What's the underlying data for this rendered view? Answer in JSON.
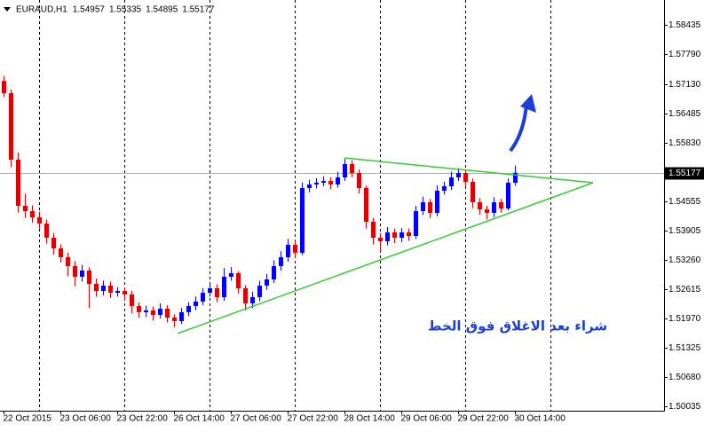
{
  "chart_data": {
    "type": "candlestick",
    "series": [
      {
        "name": "EURAUD,H1",
        "open": [
          1.572,
          1.56931,
          1.55466,
          1.5445,
          1.54333,
          1.54196,
          1.54059,
          1.53747,
          1.53512,
          1.53317,
          1.53121,
          1.52887,
          1.53024,
          1.52731,
          1.52574,
          1.52692,
          1.52535,
          1.52574,
          1.52496,
          1.52242,
          1.52106,
          1.52145,
          1.52047,
          1.52184,
          1.51988,
          1.5191,
          1.52106,
          1.52242,
          1.5234,
          1.52535,
          1.52633,
          1.52438,
          1.52887,
          1.52965,
          1.52633,
          1.52301,
          1.52438,
          1.52692,
          1.52828,
          1.53121,
          1.53317,
          1.5359,
          1.53415,
          1.54841,
          1.54919,
          1.54958,
          1.54997,
          1.54919,
          1.55075,
          1.55368,
          1.55173,
          1.54841,
          1.54098,
          1.53747,
          1.53668,
          1.53864,
          1.53747,
          1.53864,
          1.53786,
          1.54333,
          1.54528,
          1.54294,
          1.54782,
          1.5488,
          1.55075,
          1.55173,
          1.54977,
          1.54528,
          1.54372,
          1.54294,
          1.54528,
          1.54391,
          1.54957
        ],
        "high": [
          1.5731,
          1.5701,
          1.5562,
          1.5472,
          1.5446,
          1.5432,
          1.5415,
          1.5385,
          1.536,
          1.5342,
          1.5323,
          1.5315,
          1.531,
          1.5285,
          1.528,
          1.5278,
          1.5266,
          1.5265,
          1.5258,
          1.5232,
          1.5225,
          1.5223,
          1.523,
          1.5226,
          1.5206,
          1.522,
          1.5233,
          1.5245,
          1.5264,
          1.5276,
          1.5272,
          1.5308,
          1.531,
          1.5301,
          1.527,
          1.5256,
          1.528,
          1.5295,
          1.5325,
          1.5345,
          1.5372,
          1.5368,
          1.5496,
          1.5502,
          1.5506,
          1.551,
          1.5508,
          1.552,
          1.5548,
          1.5545,
          1.5525,
          1.549,
          1.5418,
          1.5385,
          1.5398,
          1.5395,
          1.5396,
          1.5395,
          1.5445,
          1.5465,
          1.546,
          1.549,
          1.5498,
          1.552,
          1.5528,
          1.5522,
          1.5505,
          1.5462,
          1.5445,
          1.5464,
          1.546,
          1.5505,
          1.55335
        ],
        "low": [
          1.5685,
          1.553,
          1.543,
          1.5418,
          1.5408,
          1.5395,
          1.5362,
          1.5338,
          1.532,
          1.529,
          1.5268,
          1.5278,
          1.522,
          1.5245,
          1.5248,
          1.5242,
          1.5245,
          1.5238,
          1.5208,
          1.5198,
          1.52,
          1.5193,
          1.5197,
          1.5188,
          1.5178,
          1.5185,
          1.5202,
          1.5215,
          1.5226,
          1.5245,
          1.5233,
          1.5236,
          1.528,
          1.5252,
          1.5215,
          1.522,
          1.5235,
          1.526,
          1.5275,
          1.5302,
          1.5322,
          1.533,
          1.5336,
          1.5475,
          1.5483,
          1.5488,
          1.5482,
          1.5485,
          1.55,
          1.5508,
          1.5472,
          1.5395,
          1.536,
          1.5345,
          1.5358,
          1.5363,
          1.5365,
          1.5368,
          1.5372,
          1.5425,
          1.5418,
          1.5422,
          1.547,
          1.548,
          1.55,
          1.5488,
          1.544,
          1.5425,
          1.5415,
          1.542,
          1.543,
          1.5435,
          1.54895
        ],
        "close": [
          1.56931,
          1.55466,
          1.5445,
          1.54333,
          1.54196,
          1.54059,
          1.53747,
          1.53512,
          1.53317,
          1.53121,
          1.52887,
          1.53024,
          1.52731,
          1.52574,
          1.52692,
          1.52535,
          1.52574,
          1.52496,
          1.52242,
          1.52106,
          1.52145,
          1.52047,
          1.52184,
          1.51988,
          1.5191,
          1.52106,
          1.52242,
          1.5234,
          1.52535,
          1.52633,
          1.52438,
          1.52887,
          1.52965,
          1.52633,
          1.52301,
          1.52438,
          1.52692,
          1.52828,
          1.53121,
          1.53317,
          1.5359,
          1.53415,
          1.54841,
          1.54919,
          1.54958,
          1.54997,
          1.54919,
          1.55075,
          1.55368,
          1.55173,
          1.54841,
          1.54098,
          1.53747,
          1.53668,
          1.53864,
          1.53747,
          1.53864,
          1.53786,
          1.54333,
          1.54528,
          1.54294,
          1.54782,
          1.5488,
          1.55075,
          1.55173,
          1.54977,
          1.54528,
          1.54372,
          1.54294,
          1.54528,
          1.54391,
          1.54957,
          1.55177
        ]
      }
    ],
    "up_color": "#0000ff",
    "down_color": "#e00000",
    "xlim": [
      -0.5,
      93
    ],
    "xticks": [
      {
        "value": 0,
        "label": "22 Oct 2015"
      },
      {
        "value": 8,
        "label": "23 Oct 06:00"
      },
      {
        "value": 16,
        "label": "23 Oct 22:00"
      },
      {
        "value": 24,
        "label": "26 Oct 14:00"
      },
      {
        "value": 32,
        "label": "27 Oct 06:00"
      },
      {
        "value": 40,
        "label": "27 Oct 22:00"
      },
      {
        "value": 48,
        "label": "28 Oct 14:00"
      },
      {
        "value": 56,
        "label": "29 Oct 06:00"
      },
      {
        "value": 64,
        "label": "29 Oct 22:00"
      },
      {
        "value": 72,
        "label": "30 Oct 14:00"
      }
    ],
    "period_separators": [
      5,
      17,
      29,
      41,
      53,
      65,
      77
    ],
    "ylim": [
      1.49937,
      1.58982
    ],
    "yticks": [
      1.58435,
      {
        "value": 1.5779,
        "label": "1.57790"
      },
      {
        "value": 1.5713,
        "label": "1.57130"
      },
      1.56485,
      {
        "value": 1.5583,
        "label": "1.55830"
      },
      1.54555,
      1.53905,
      {
        "value": 1.5326,
        "label": "1.53260"
      },
      1.52615,
      {
        "value": 1.5197,
        "label": "1.51970"
      },
      1.51325,
      {
        "value": 1.5068,
        "label": "1.50680"
      },
      1.50035
    ],
    "trendlines": [
      {
        "color": "#33cc33",
        "x": [
          48,
          83
        ],
        "y": [
          1.55505,
          1.54958
        ]
      },
      {
        "color": "#33cc33",
        "x": [
          24.5,
          83
        ],
        "y": [
          1.51637,
          1.54958
        ]
      }
    ],
    "annotation": "شراء بعد الاغلاق فوق الخط"
  }
}
